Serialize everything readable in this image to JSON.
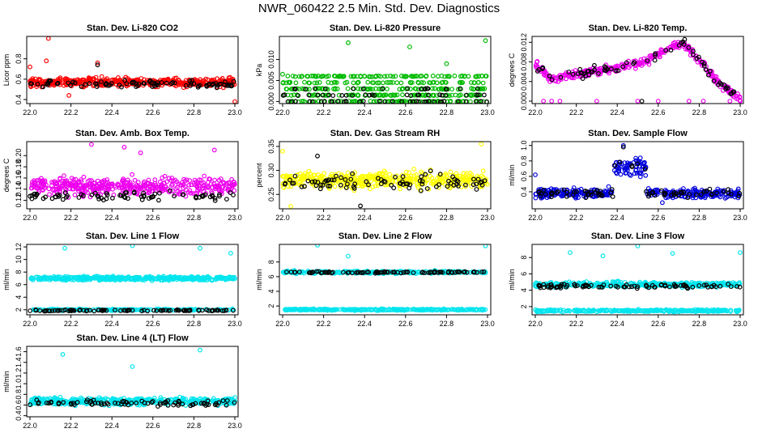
{
  "page": {
    "title": "NWR_060422  2.5 Min. Std. Dev. Diagnostics"
  },
  "colors": {
    "outline": "#000000",
    "overlay": "#000000"
  },
  "chart_data": [
    {
      "type": "scatter",
      "title": "Stan. Dev. Li-820 CO2",
      "ylabel": "Licor ppm",
      "xlim": [
        22.0,
        23.0
      ],
      "ylim": [
        0.36,
        1.02
      ],
      "xticks": [
        "22.0",
        "22.2",
        "22.4",
        "22.6",
        "22.8",
        "23.0"
      ],
      "yticks": [
        0.4,
        0.6,
        0.8
      ],
      "yticklabels": [
        "0.4",
        "0.6",
        "0.8"
      ],
      "series": [
        {
          "color": "#ff0000",
          "center": 0.57,
          "spread": 0.05,
          "count": 420,
          "outliers": [
            [
              22.09,
              1.0
            ],
            [
              22.0,
              0.72
            ],
            [
              22.08,
              0.78
            ],
            [
              22.19,
              0.44
            ],
            [
              22.33,
              0.76
            ],
            [
              23.0,
              0.38
            ]
          ]
        },
        {
          "color": "#000000",
          "center": 0.55,
          "spread": 0.04,
          "count": 90,
          "outliers": [
            [
              22.33,
              0.74
            ]
          ]
        }
      ]
    },
    {
      "type": "scatter",
      "title": "Stan. Dev. Li-820 Pressure",
      "ylabel": "kPa",
      "xlim": [
        22.0,
        23.0
      ],
      "ylim": [
        -0.0005,
        0.0155
      ],
      "xticks": [
        "22.0",
        "22.2",
        "22.4",
        "22.6",
        "22.8",
        "23.0"
      ],
      "yticks": [
        0.0,
        0.005,
        0.01
      ],
      "yticklabels": [
        "0.000",
        "0.005",
        "0.010"
      ],
      "series": [
        {
          "color": "#00bb00",
          "levels": [
            0.0,
            0.0015,
            0.003,
            0.0045,
            0.006
          ],
          "count": 420,
          "outliers": [
            [
              22.32,
              0.014
            ],
            [
              22.62,
              0.013
            ],
            [
              22.8,
              0.009
            ],
            [
              22.99,
              0.0145
            ],
            [
              22.0,
              0.0065
            ]
          ]
        },
        {
          "color": "#000000",
          "levels": [
            0.0,
            0.0015,
            0.003
          ],
          "count": 80,
          "outliers": []
        }
      ]
    },
    {
      "type": "scatter",
      "title": "Stan. Dev. Li-820 Temp.",
      "ylabel": "degrees C",
      "xlim": [
        22.0,
        23.0
      ],
      "ylim": [
        -0.0005,
        0.0132
      ],
      "xticks": [
        "22.0",
        "22.2",
        "22.4",
        "22.6",
        "22.8",
        "23.0"
      ],
      "yticks": [
        0.0,
        0.004,
        0.008,
        0.012
      ],
      "yticklabels": [
        "0.000",
        "0.004",
        "0.008",
        "0.012"
      ],
      "trend": [
        [
          22.0,
          0.0075
        ],
        [
          22.08,
          0.0045
        ],
        [
          22.2,
          0.0055
        ],
        [
          22.4,
          0.0068
        ],
        [
          22.55,
          0.0082
        ],
        [
          22.65,
          0.011
        ],
        [
          22.72,
          0.0118
        ],
        [
          22.8,
          0.0085
        ],
        [
          22.9,
          0.0035
        ],
        [
          23.0,
          0.0005
        ]
      ],
      "series": [
        {
          "color": "#ee00ee",
          "center": 0.0,
          "spread": 0.0012,
          "count": 330,
          "outliers": [
            [
              22.04,
              0.0
            ],
            [
              22.08,
              0.0
            ],
            [
              22.12,
              0.0
            ],
            [
              22.3,
              0.0
            ],
            [
              22.5,
              0.0
            ],
            [
              22.6,
              0.0
            ],
            [
              22.75,
              0.0
            ],
            [
              22.82,
              0.0
            ],
            [
              22.95,
              0.0
            ],
            [
              23.0,
              0.0
            ]
          ]
        },
        {
          "color": "#000000",
          "center": 0.0,
          "spread": 0.0012,
          "count": 70,
          "outliers": [
            [
              22.52,
              0.0
            ]
          ]
        }
      ]
    },
    {
      "type": "scatter",
      "title": "Stan. Dev. Amb. Box Temp.",
      "ylabel": "degrees C",
      "xlim": [
        22.0,
        23.0
      ],
      "ylim": [
        0.105,
        0.225
      ],
      "xticks": [
        "22.0",
        "22.2",
        "22.4",
        "22.6",
        "22.8",
        "23.0"
      ],
      "yticks": [
        0.12,
        0.14,
        0.16,
        0.18,
        0.2
      ],
      "yticklabels": [
        "0.12",
        "0.14",
        "0.16",
        "0.18",
        "0.20"
      ],
      "series": [
        {
          "color": "#ee00ee",
          "center": 0.145,
          "spread": 0.018,
          "count": 430,
          "outliers": [
            [
              22.3,
              0.22
            ],
            [
              22.46,
              0.215
            ],
            [
              22.54,
              0.205
            ],
            [
              22.9,
              0.21
            ]
          ]
        },
        {
          "color": "#000000",
          "center": 0.128,
          "spread": 0.008,
          "count": 80,
          "outliers": []
        }
      ]
    },
    {
      "type": "scatter",
      "title": "Stan. Dev. Gas Stream RH",
      "ylabel": "percent",
      "xlim": [
        22.0,
        23.0
      ],
      "ylim": [
        0.22,
        0.36
      ],
      "xticks": [
        "22.0",
        "22.2",
        "22.4",
        "22.6",
        "22.8",
        "23.0"
      ],
      "yticks": [
        0.25,
        0.3,
        0.35
      ],
      "yticklabels": [
        "0.25",
        "0.30",
        "0.35"
      ],
      "series": [
        {
          "color": "#ffff00",
          "center": 0.28,
          "spread": 0.02,
          "count": 430,
          "outliers": [
            [
              22.97,
              0.355
            ],
            [
              22.0,
              0.34
            ],
            [
              22.04,
              0.225
            ]
          ]
        },
        {
          "color": "#000000",
          "center": 0.275,
          "spread": 0.02,
          "count": 85,
          "outliers": [
            [
              22.17,
              0.33
            ],
            [
              22.38,
              0.226
            ]
          ]
        }
      ]
    },
    {
      "type": "scatter",
      "title": "Stan. Dev. Sample Flow",
      "ylabel": "ml/min",
      "xlim": [
        22.0,
        23.0
      ],
      "ylim": [
        0.18,
        1.05
      ],
      "xticks": [
        "22.0",
        "22.2",
        "22.4",
        "22.6",
        "22.8",
        "23.0"
      ],
      "yticks": [
        0.4,
        0.6,
        0.8,
        1.0
      ],
      "yticklabels": [
        "0.4",
        "0.6",
        "0.8",
        "1.0"
      ],
      "bump": {
        "from": 22.38,
        "to": 22.54,
        "level": 0.72
      },
      "series": [
        {
          "color": "#0000dd",
          "center": 0.38,
          "spread": 0.07,
          "count": 380,
          "outliers": [
            [
              22.43,
              1.0
            ],
            [
              22.0,
              0.62
            ],
            [
              22.62,
              0.26
            ]
          ]
        },
        {
          "color": "#000000",
          "center": 0.38,
          "spread": 0.06,
          "count": 75,
          "outliers": [
            [
              22.43,
              0.98
            ]
          ]
        }
      ]
    },
    {
      "type": "scatter",
      "title": "Stan. Dev. Line 1 Flow",
      "ylabel": "ml/min",
      "xlim": [
        22.0,
        23.0
      ],
      "ylim": [
        1.2,
        12.4
      ],
      "xticks": [
        "22.0",
        "22.2",
        "22.4",
        "22.6",
        "22.8",
        "23.0"
      ],
      "yticks": [
        2,
        4,
        6,
        8,
        10,
        12
      ],
      "yticklabels": [
        "2",
        "4",
        "6",
        "8",
        "10",
        "12"
      ],
      "series": [
        {
          "color": "#00e5ee",
          "center": 7.0,
          "spread": 0.35,
          "count": 380,
          "outliers": [
            [
              22.17,
              11.8
            ],
            [
              22.5,
              12.2
            ],
            [
              22.83,
              11.8
            ],
            [
              22.98,
              11.0
            ]
          ]
        },
        {
          "color": "#00e5ee",
          "center": 2.0,
          "spread": 0.15,
          "count": 200,
          "outliers": []
        },
        {
          "color": "#000000",
          "center": 1.9,
          "spread": 0.12,
          "count": 90,
          "outliers": []
        }
      ]
    },
    {
      "type": "scatter",
      "title": "Stan. Dev. Line 2 Flow",
      "ylabel": "ml/min",
      "xlim": [
        22.0,
        23.0
      ],
      "ylim": [
        0.8,
        10.4
      ],
      "xticks": [
        "22.0",
        "22.2",
        "22.4",
        "22.6",
        "22.8",
        "23.0"
      ],
      "yticks": [
        2,
        4,
        6,
        8
      ],
      "yticklabels": [
        "2",
        "4",
        "6",
        "8"
      ],
      "series": [
        {
          "color": "#00e5ee",
          "center": 6.6,
          "spread": 0.2,
          "count": 300,
          "outliers": [
            [
              22.32,
              8.8
            ],
            [
              22.99,
              10.2
            ],
            [
              22.17,
              10.3
            ]
          ]
        },
        {
          "color": "#00e5ee",
          "center": 1.5,
          "spread": 0.12,
          "count": 300,
          "outliers": []
        },
        {
          "color": "#000000",
          "center": 6.6,
          "spread": 0.15,
          "count": 90,
          "outliers": []
        }
      ]
    },
    {
      "type": "scatter",
      "title": "Stan. Dev. Line 3 Flow",
      "ylabel": "ml/min",
      "xlim": [
        22.0,
        23.0
      ],
      "ylim": [
        1.0,
        9.6
      ],
      "xticks": [
        "22.0",
        "22.2",
        "22.4",
        "22.6",
        "22.8",
        "23.0"
      ],
      "yticks": [
        2,
        4,
        6,
        8
      ],
      "yticklabels": [
        "2",
        "4",
        "6",
        "8"
      ],
      "series": [
        {
          "color": "#00e5ee",
          "center": 4.7,
          "spread": 0.35,
          "count": 360,
          "outliers": [
            [
              22.17,
              8.6
            ],
            [
              22.33,
              8.2
            ],
            [
              22.5,
              9.4
            ],
            [
              22.67,
              8.5
            ],
            [
              23.0,
              8.6
            ]
          ]
        },
        {
          "color": "#00e5ee",
          "center": 1.5,
          "spread": 0.15,
          "count": 300,
          "outliers": []
        },
        {
          "color": "#000000",
          "center": 4.5,
          "spread": 0.3,
          "count": 90,
          "outliers": []
        }
      ]
    },
    {
      "type": "scatter",
      "title": "Stan. Dev. Line 4 (LT) Flow",
      "ylabel": "ml/min",
      "xlim": [
        22.0,
        23.0
      ],
      "ylim": [
        0.38,
        1.7
      ],
      "xticks": [
        "22.0",
        "22.2",
        "22.4",
        "22.6",
        "22.8",
        "23.0"
      ],
      "yticks": [
        0.4,
        0.6,
        0.8,
        1.0,
        1.2,
        1.4,
        1.6
      ],
      "yticklabels": [
        "0.4",
        "0.6",
        "0.8",
        "1.0",
        "1.2",
        "1.4",
        "1.6"
      ],
      "series": [
        {
          "color": "#00e5ee",
          "center": 0.67,
          "spread": 0.08,
          "count": 430,
          "outliers": [
            [
              22.16,
              1.55
            ],
            [
              22.5,
              1.32
            ],
            [
              22.83,
              1.63
            ]
          ]
        },
        {
          "color": "#000000",
          "center": 0.64,
          "spread": 0.07,
          "count": 80,
          "outliers": []
        }
      ]
    }
  ]
}
